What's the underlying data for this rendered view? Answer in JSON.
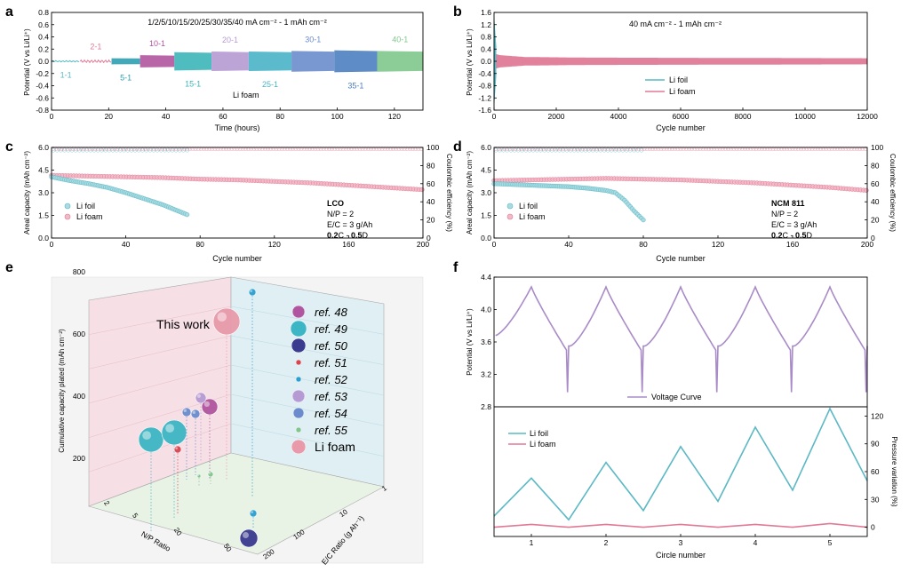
{
  "colors": {
    "foil": "#5bb8c4",
    "foam": "#e07a96",
    "voltage": "#a98bc7",
    "wall_left": "#f7dfe6",
    "wall_right": "#dfeff3",
    "floor": "#e8f3e6",
    "stages": [
      "#5bb8c4",
      "#e07a96",
      "#2f9fb0",
      "#b0559f",
      "#3cb5b8",
      "#b69ad3",
      "#49b3c6",
      "#6a8ccc",
      "#4c7fc0",
      "#80c68c"
    ]
  },
  "chart_data": [
    {
      "panel": "a",
      "type": "line",
      "annotation": "1/2/5/10/15/20/25/30/35/40 mA cm⁻² - 1 mAh cm⁻²",
      "note": "Li foam",
      "xlabel": "Time (hours)",
      "ylabel": "Potential (V vs Li/Li⁺)",
      "xlim": [
        0,
        130
      ],
      "ylim": [
        -0.8,
        0.8
      ],
      "xticks": [
        "0",
        "20",
        "40",
        "60",
        "80",
        "100",
        "120"
      ],
      "yticks": [
        "-0.8",
        "-0.6",
        "-0.4",
        "-0.2",
        "0.0",
        "0.2",
        "0.4",
        "0.6",
        "0.8"
      ],
      "stages": [
        {
          "label": "1-1",
          "start": 0,
          "end": 10,
          "amp": 0.01,
          "label_pos": "below"
        },
        {
          "label": "2-1",
          "start": 10,
          "end": 21,
          "amp": 0.02,
          "label_pos": "above"
        },
        {
          "label": "5-1",
          "start": 21,
          "end": 31,
          "amp": 0.05,
          "label_pos": "below"
        },
        {
          "label": "10-1",
          "start": 31,
          "end": 43,
          "amp": 0.1,
          "label_pos": "above"
        },
        {
          "label": "15-1",
          "start": 43,
          "end": 56,
          "amp": 0.15,
          "label_pos": "below"
        },
        {
          "label": "20-1",
          "start": 56,
          "end": 69,
          "amp": 0.16,
          "label_pos": "above"
        },
        {
          "label": "25-1",
          "start": 69,
          "end": 84,
          "amp": 0.16,
          "label_pos": "below"
        },
        {
          "label": "30-1",
          "start": 84,
          "end": 99,
          "amp": 0.17,
          "label_pos": "above"
        },
        {
          "label": "35-1",
          "start": 99,
          "end": 114,
          "amp": 0.18,
          "label_pos": "below"
        },
        {
          "label": "40-1",
          "start": 114,
          "end": 130,
          "amp": 0.17,
          "label_pos": "above"
        }
      ]
    },
    {
      "panel": "b",
      "type": "line",
      "annotation": "40 mA cm⁻² - 1 mAh cm⁻²",
      "xlabel": "Cycle number",
      "ylabel": "Potential (V vs Li/Li⁺)",
      "xlim": [
        0,
        12000
      ],
      "ylim": [
        -1.6,
        1.6
      ],
      "xticks": [
        "0",
        "2000",
        "4000",
        "6000",
        "8000",
        "10000",
        "12000"
      ],
      "yticks": [
        "-1.6",
        "-1.2",
        "-0.8",
        "-0.4",
        "0.0",
        "0.4",
        "0.8",
        "1.2",
        "1.6"
      ],
      "legend": [
        "Li foil",
        "Li foam"
      ],
      "series": [
        {
          "name": "Li foil",
          "x": [
            0,
            20,
            40,
            60
          ],
          "amp": [
            1.4,
            1.1,
            0.8,
            0.5
          ]
        },
        {
          "name": "Li foam",
          "x": [
            0,
            200,
            1000,
            3000,
            12000
          ],
          "amp": [
            0.25,
            0.2,
            0.14,
            0.12,
            0.1
          ]
        }
      ]
    },
    {
      "panel": "c",
      "type": "scatter",
      "xlabel": "Cycle number",
      "ylabel": "Areal capacity (mAh cm⁻²)",
      "y2label": "Coulombic efficiency (%)",
      "xlim": [
        0,
        200
      ],
      "ylim": [
        0,
        6
      ],
      "y2lim": [
        0,
        100
      ],
      "xticks": [
        "0",
        "40",
        "80",
        "120",
        "160",
        "200"
      ],
      "yticks": [
        "0.0",
        "1.5",
        "3.0",
        "4.5",
        "6.0"
      ],
      "y2ticks": [
        "0",
        "20",
        "40",
        "60",
        "80",
        "100"
      ],
      "legend": [
        "Li foil",
        "Li foam"
      ],
      "cell_title": "LCO",
      "cell_lines": [
        "N/P = 2",
        "E/C = 3 g/Ah"
      ],
      "rate": {
        "c_val": "0.2",
        "c_unit": "C",
        "sep": " - ",
        "d_val": "0.5",
        "d_unit": "D"
      },
      "series": [
        {
          "name": "Li foil capacity",
          "x": [
            0,
            10,
            20,
            30,
            40,
            50,
            60,
            65,
            70,
            73
          ],
          "y": [
            4.05,
            3.8,
            3.6,
            3.35,
            3.0,
            2.6,
            2.2,
            1.95,
            1.7,
            1.55
          ]
        },
        {
          "name": "Li foam capacity",
          "x": [
            0,
            20,
            40,
            60,
            80,
            100,
            120,
            140,
            160,
            180,
            200
          ],
          "y": [
            4.15,
            4.1,
            4.05,
            4.0,
            3.9,
            3.85,
            3.75,
            3.65,
            3.5,
            3.35,
            3.2
          ]
        },
        {
          "name": "Li foil CE",
          "x": [
            1,
            73
          ],
          "y": [
            98,
            98
          ]
        },
        {
          "name": "Li foam CE",
          "x": [
            1,
            200
          ],
          "y": [
            98.5,
            98.5
          ]
        }
      ]
    },
    {
      "panel": "d",
      "type": "scatter",
      "xlabel": "Cycle number",
      "ylabel": "Areal capacity (mAh cm⁻²)",
      "y2label": "Coulombic efficiency (%)",
      "xlim": [
        0,
        200
      ],
      "ylim": [
        0,
        6
      ],
      "y2lim": [
        0,
        100
      ],
      "xticks": [
        "0",
        "40",
        "80",
        "120",
        "160",
        "200"
      ],
      "yticks": [
        "0.0",
        "1.5",
        "3.0",
        "4.5",
        "6.0"
      ],
      "y2ticks": [
        "0",
        "20",
        "40",
        "60",
        "80",
        "100"
      ],
      "legend": [
        "Li foil",
        "Li foam"
      ],
      "cell_title": "NCM 811",
      "cell_lines": [
        "N/P = 2",
        "E/C = 3 g/Ah"
      ],
      "rate": {
        "c_val": "0.2",
        "c_unit": "C",
        "sep": " - ",
        "d_val": "0.5",
        "d_unit": "D"
      },
      "series": [
        {
          "name": "Li foil capacity",
          "x": [
            0,
            10,
            20,
            30,
            40,
            50,
            60,
            65,
            70,
            75,
            80
          ],
          "y": [
            3.6,
            3.55,
            3.5,
            3.45,
            3.4,
            3.3,
            3.15,
            3.0,
            2.5,
            1.8,
            1.2
          ]
        },
        {
          "name": "Li foam capacity",
          "x": [
            0,
            20,
            40,
            60,
            80,
            100,
            120,
            140,
            160,
            180,
            200
          ],
          "y": [
            3.8,
            3.85,
            3.9,
            3.95,
            3.9,
            3.85,
            3.75,
            3.65,
            3.5,
            3.35,
            3.15
          ]
        },
        {
          "name": "Li foil CE",
          "x": [
            1,
            80
          ],
          "y": [
            98,
            98
          ]
        },
        {
          "name": "Li foam CE",
          "x": [
            1,
            200
          ],
          "y": [
            98.5,
            98.5
          ]
        }
      ]
    },
    {
      "panel": "e",
      "type": "scatter",
      "xlabel": "N/P Ratio",
      "ylabel": "E/C Ratio (g Ah⁻¹)",
      "zlabel": "Cumulative capacity plated (mAh cm⁻²)",
      "xticks": [
        "2",
        "5",
        "20",
        "50"
      ],
      "yticks": [
        "1",
        "10",
        "100",
        "200"
      ],
      "zticks": [
        "200",
        "400",
        "600",
        "800"
      ],
      "callout": "This work",
      "legend": [
        {
          "label": "ref. 48",
          "color": "#b0559f"
        },
        {
          "label": "ref. 49",
          "color": "#3cb5c4"
        },
        {
          "label": "ref. 50",
          "color": "#3a3a8e"
        },
        {
          "label": "ref. 51",
          "color": "#d84450"
        },
        {
          "label": "ref. 52",
          "color": "#2b9fd0"
        },
        {
          "label": "ref. 53",
          "color": "#b69ad3"
        },
        {
          "label": "ref. 54",
          "color": "#6a8ccc"
        },
        {
          "label": "ref. 55",
          "color": "#80c68c"
        },
        {
          "label": "Li foam",
          "color": "#e89aaa"
        }
      ]
    },
    {
      "panel": "f",
      "type": "line",
      "xlabel": "Circle number",
      "ylabel_top": "Potential (V vs Li/Li⁺)",
      "ylabel_bottom": "Pressure variation (%)",
      "xlim": [
        0.5,
        5.5
      ],
      "top_ylim": [
        2.8,
        4.4
      ],
      "bottom_ylim": [
        -10,
        130
      ],
      "xticks": [
        "1",
        "2",
        "3",
        "4",
        "5"
      ],
      "top_yticks": [
        "2.8",
        "3.2",
        "3.6",
        "4.0",
        "4.4"
      ],
      "bottom_yticks": [
        "0",
        "30",
        "60",
        "90",
        "120"
      ],
      "top_legend": "Voltage Curve",
      "bottom_legend": [
        "Li foil",
        "Li foam"
      ],
      "voltage": {
        "cycle_start": 0.5,
        "rest_v": 3.68,
        "peak_v": 4.28,
        "dip_v": 2.98
      },
      "pressure": [
        {
          "name": "Li foil",
          "x": [
            0.5,
            1.0,
            1.5,
            2.0,
            2.5,
            3.0,
            3.5,
            4.0,
            4.5,
            5.0,
            5.5
          ],
          "y": [
            12,
            53,
            8,
            70,
            18,
            87,
            28,
            108,
            40,
            128,
            50
          ]
        },
        {
          "name": "Li foam",
          "x": [
            0.5,
            1.0,
            1.5,
            2.0,
            2.5,
            3.0,
            3.5,
            4.0,
            4.5,
            5.0,
            5.5
          ],
          "y": [
            0,
            3,
            0,
            3,
            0,
            3,
            0,
            3,
            0,
            4,
            0
          ]
        }
      ]
    }
  ],
  "panel_letters": [
    "a",
    "b",
    "c",
    "d",
    "e",
    "f"
  ]
}
